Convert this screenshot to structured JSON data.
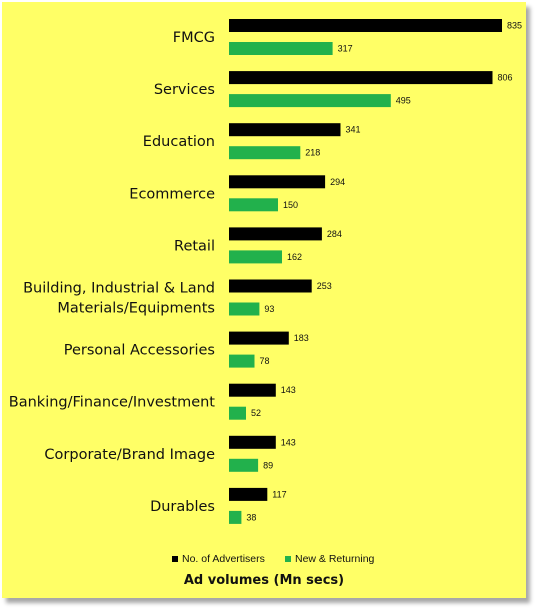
{
  "chart_data": {
    "type": "bar",
    "orientation": "horizontal",
    "categories": [
      "FMCG",
      "Services",
      "Education",
      "Ecommerce",
      "Retail",
      "Building, Industrial & Land Materials/Equipments",
      "Personal Accessories",
      "Banking/Finance/Investment",
      "Corporate/Brand Image",
      "Durables"
    ],
    "category_lines": [
      [
        "FMCG"
      ],
      [
        "Services"
      ],
      [
        "Education"
      ],
      [
        "Ecommerce"
      ],
      [
        "Retail"
      ],
      [
        "Building, Industrial & Land",
        "Materials/Equipments"
      ],
      [
        "Personal Accessories"
      ],
      [
        "Banking/Finance/Investment"
      ],
      [
        "Corporate/Brand Image"
      ],
      [
        "Durables"
      ]
    ],
    "series": [
      {
        "name": "No. of Advertisers",
        "color": "#000000",
        "values": [
          835,
          806,
          341,
          294,
          284,
          253,
          183,
          143,
          143,
          117
        ],
        "value_labels": [
          "835",
          "806",
          "341",
          "294",
          "284",
          "253",
          "183",
          "143",
          "143",
          "117"
        ]
      },
      {
        "name": "New & Returning",
        "color": "#22b14c",
        "values": [
          317,
          495,
          218,
          150,
          162,
          93,
          78,
          52,
          89,
          38
        ],
        "value_labels": [
          "317",
          "495",
          "218",
          "150",
          "162",
          "93",
          "78",
          "52",
          "89",
          "38"
        ]
      }
    ],
    "xlabel": "Ad volumes (Mn secs)",
    "ylabel": "",
    "xlim": [
      0,
      835
    ],
    "grid": false,
    "legend_position": "bottom",
    "background_color": "#ffff66"
  }
}
